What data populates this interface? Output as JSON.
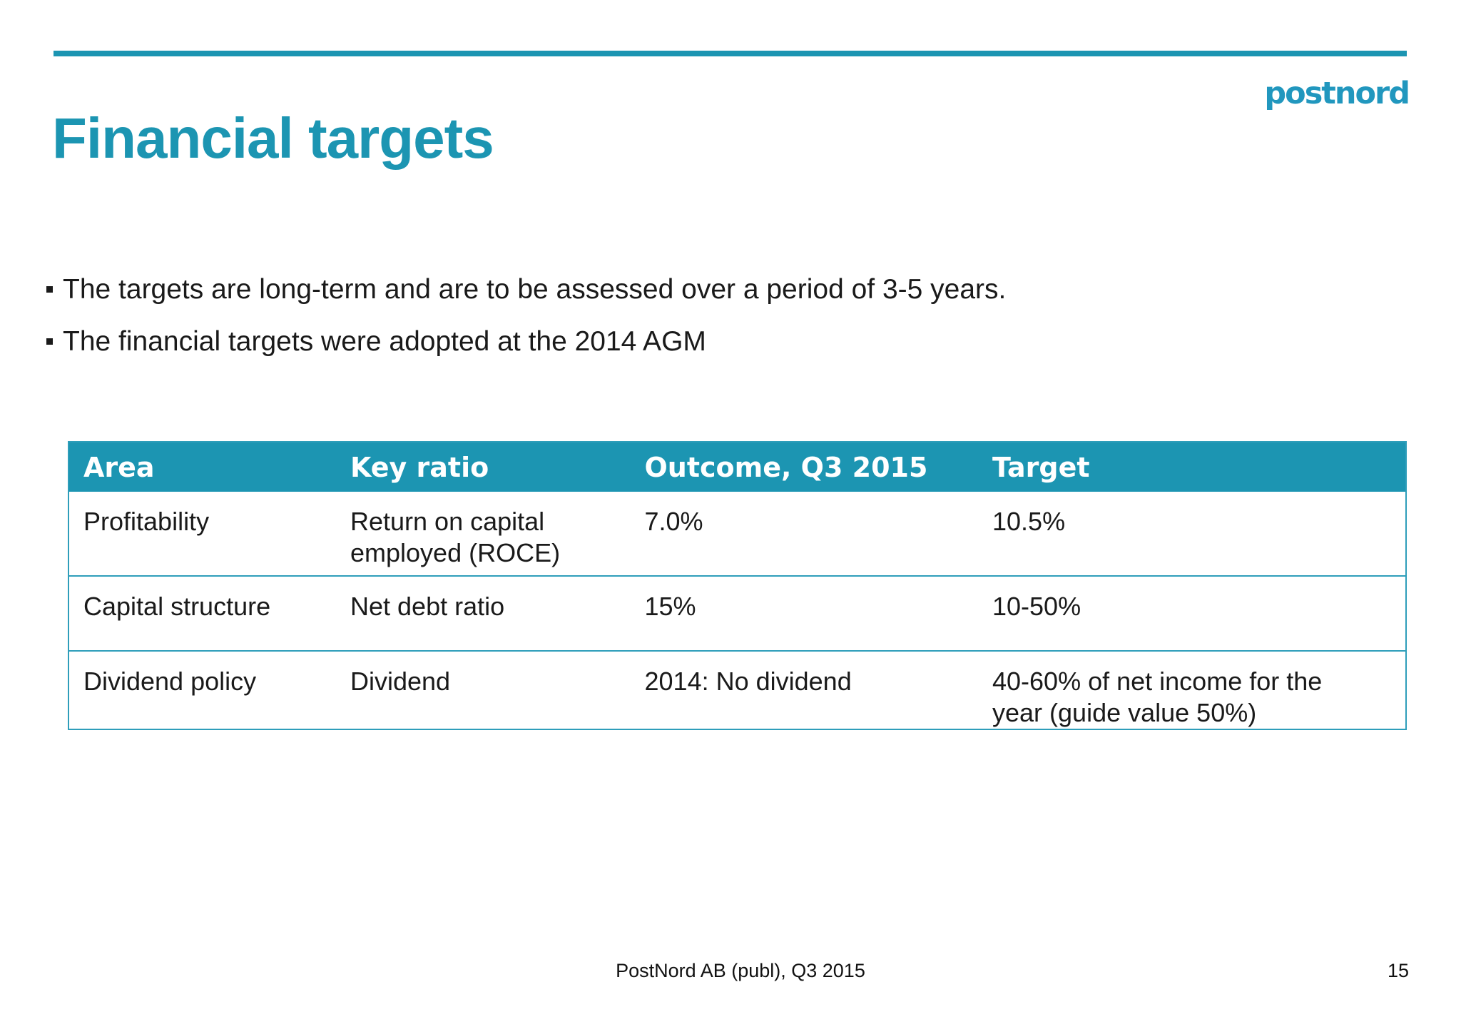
{
  "slide": {
    "title": "Financial targets",
    "logo_text": "postnord",
    "bullets": [
      "The targets are long-term and are to be assessed over a period of 3-5 years.",
      "The financial targets were adopted at the 2014 AGM"
    ],
    "table": {
      "headers": [
        "Area",
        "Key ratio",
        "Outcome, Q3 2015",
        "Target"
      ],
      "rows": [
        [
          "Profitability",
          "Return on capital employed (ROCE)",
          "7.0%",
          "10.5%"
        ],
        [
          "Capital structure",
          "Net debt ratio",
          "15%",
          "10-50%"
        ],
        [
          "Dividend policy",
          "Dividend",
          "2014: No dividend",
          "40-60% of net income for the year (guide value 50%)"
        ]
      ]
    },
    "footer": {
      "caption": "PostNord AB (publ), Q3 2015",
      "page_number": "15"
    },
    "colors": {
      "accent_teal": "#1c95b2",
      "logo_teal": "#2197be",
      "table_border_teal": "#2e9eba",
      "body_text": "#1a1a1a"
    }
  }
}
